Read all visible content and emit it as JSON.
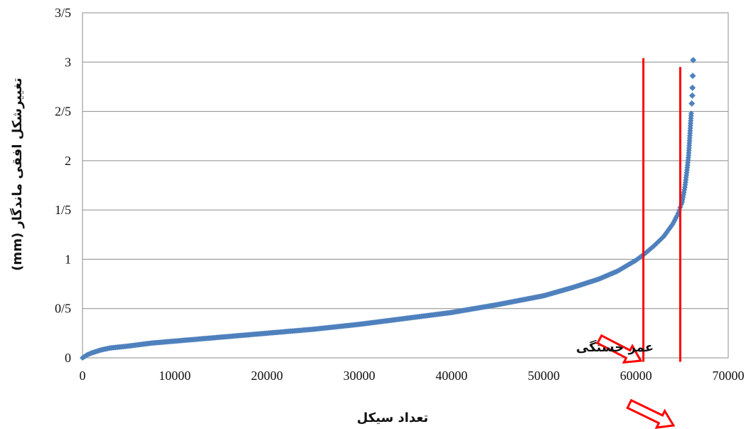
{
  "chart_data": {
    "type": "scatter",
    "title": "",
    "xlabel": "تعداد سیکل",
    "ylabel": "تغییرشکل افقی ماندگار (mm)",
    "xlim": [
      0,
      70000
    ],
    "ylim": [
      0,
      3.5
    ],
    "x_ticks": [
      0,
      10000,
      20000,
      30000,
      40000,
      50000,
      60000,
      70000
    ],
    "x_tick_labels": [
      "0",
      "10000",
      "20000",
      "30000",
      "40000",
      "50000",
      "60000",
      "70000"
    ],
    "y_ticks": [
      0,
      0.5,
      1,
      1.5,
      2,
      2.5,
      3,
      3.5
    ],
    "y_tick_labels": [
      "0",
      "0/5",
      "1",
      "1/5",
      "2",
      "2/5",
      "3",
      "3/5"
    ],
    "grid": "horizontal",
    "legend": "none",
    "marker_color": "#4F81BD",
    "line_color": "#FF0000",
    "curve_points": {
      "x": [
        0,
        500,
        1000,
        2000,
        3000,
        5000,
        7500,
        10000,
        15000,
        20000,
        25000,
        30000,
        35000,
        40000,
        45000,
        50000,
        53000,
        56000,
        58000,
        60000,
        61000,
        62000,
        63000,
        64000,
        64500,
        65000,
        65300,
        65500,
        65700,
        65800,
        65900,
        66000,
        66050,
        66100,
        66150,
        66200
      ],
      "y": [
        0,
        0.03,
        0.05,
        0.08,
        0.1,
        0.12,
        0.15,
        0.17,
        0.21,
        0.25,
        0.29,
        0.34,
        0.4,
        0.46,
        0.54,
        0.63,
        0.71,
        0.8,
        0.88,
        0.99,
        1.06,
        1.14,
        1.23,
        1.36,
        1.45,
        1.58,
        1.73,
        1.88,
        2.05,
        2.2,
        2.35,
        2.5,
        2.6,
        2.7,
        2.86,
        3.02
      ]
    },
    "vertical_lines": [
      {
        "x": 60800,
        "y_top": 3.04
      },
      {
        "x": 64800,
        "y_top": 2.95
      }
    ],
    "annotations": [
      {
        "text": "عمر خستگی"
      }
    ]
  }
}
